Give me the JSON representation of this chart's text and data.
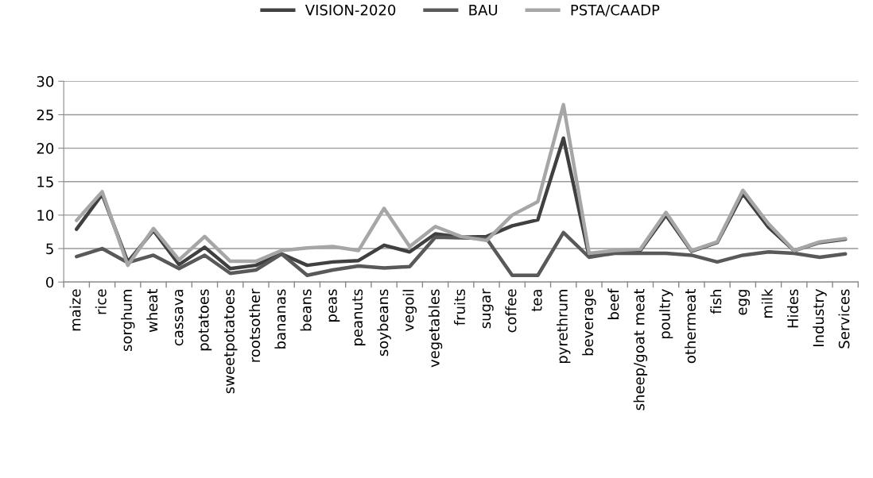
{
  "chart_data": {
    "type": "line",
    "categories": [
      "maize",
      "rice",
      "sorghum",
      "wheat",
      "cassava",
      "potatoes",
      "sweetpotatoes",
      "rootsother",
      "bananas",
      "beans",
      "peas",
      "peanuts",
      "soybeans",
      "vegoil",
      "vegetables",
      "fruits",
      "sugar",
      "coffee",
      "tea",
      "pyrethrum",
      "beverage",
      "beef",
      "sheep/goat meat",
      "poultry",
      "othermeat",
      "fish",
      "egg",
      "milk",
      "Hides",
      "Industry",
      "Services"
    ],
    "series": [
      {
        "name": "VISION-2020",
        "color": "#404040",
        "values": [
          7.9,
          13.1,
          3.0,
          7.7,
          2.6,
          5.2,
          2.0,
          2.5,
          4.2,
          2.5,
          3.0,
          3.2,
          5.5,
          4.5,
          7.2,
          6.7,
          6.8,
          8.4,
          9.3,
          21.5,
          3.8,
          4.5,
          4.7,
          10.0,
          4.6,
          5.9,
          13.2,
          8.2,
          4.7,
          5.9,
          6.4
        ]
      },
      {
        "name": "BAU",
        "color": "#595959",
        "values": [
          3.8,
          5.0,
          2.9,
          4.0,
          2.0,
          4.0,
          1.3,
          1.8,
          4.2,
          1.0,
          1.8,
          2.4,
          2.1,
          2.3,
          6.7,
          6.6,
          6.5,
          1.0,
          1.0,
          7.4,
          3.7,
          4.3,
          4.3,
          4.3,
          4.0,
          3.0,
          4.0,
          4.5,
          4.3,
          3.7,
          4.2
        ]
      },
      {
        "name": "PSTA/CAADP",
        "color": "#a6a6a6",
        "values": [
          9.2,
          13.5,
          2.5,
          8.0,
          3.3,
          6.8,
          3.1,
          3.1,
          4.7,
          5.1,
          5.3,
          4.7,
          11.0,
          5.3,
          8.3,
          6.8,
          6.2,
          10.0,
          12.0,
          26.5,
          4.3,
          4.7,
          4.9,
          10.4,
          4.7,
          6.0,
          13.7,
          8.7,
          4.7,
          6.0,
          6.5
        ]
      }
    ],
    "ylim": [
      0,
      30
    ],
    "yticks": [
      0,
      5,
      10,
      15,
      20,
      25,
      30
    ],
    "grid": "y",
    "legend": "top",
    "marker": "none",
    "line_style": "solid"
  }
}
